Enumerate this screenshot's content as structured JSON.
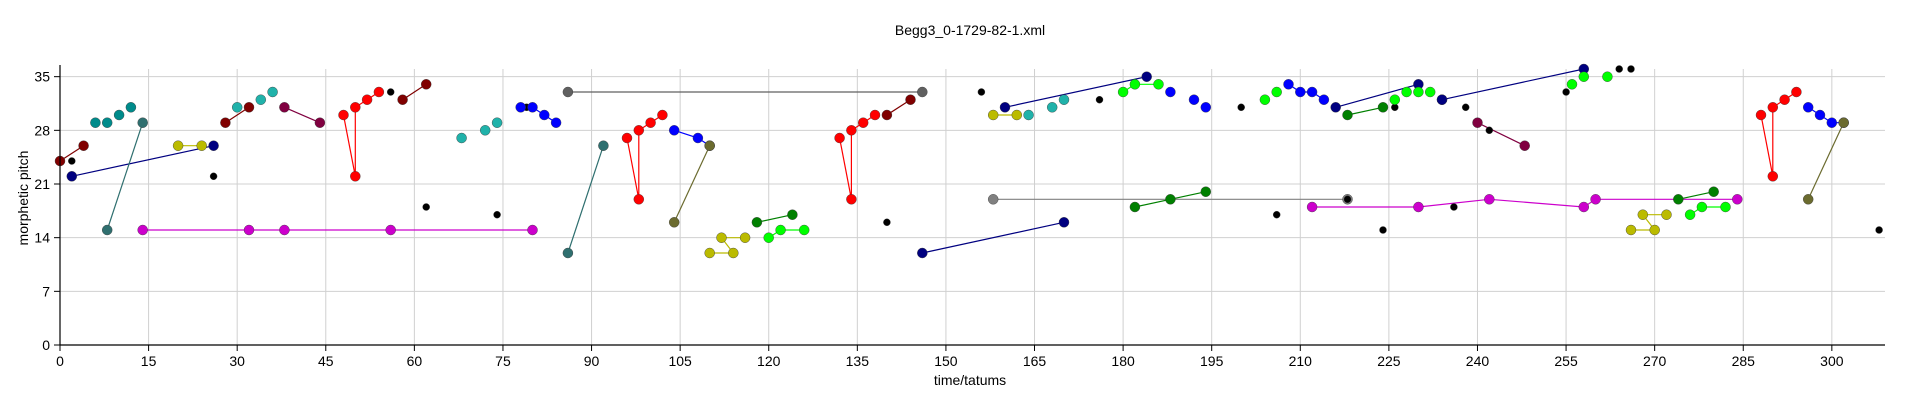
{
  "chart_data": {
    "type": "scatter",
    "title": "Begg3_0-1729-82-1.xml",
    "xlabel": "time/tatums",
    "ylabel": "morphetic pitch",
    "xlim": [
      0,
      309
    ],
    "ylim": [
      0,
      36
    ],
    "xticks": [
      0,
      15,
      30,
      45,
      60,
      75,
      90,
      105,
      120,
      135,
      150,
      165,
      180,
      195,
      210,
      225,
      240,
      255,
      270,
      285,
      300
    ],
    "yticks": [
      0,
      7,
      14,
      21,
      28,
      35
    ],
    "grid": true,
    "series": [
      {
        "color": "#800000",
        "points": [
          [
            0,
            24
          ],
          [
            4,
            26
          ]
        ],
        "lines": true
      },
      {
        "color": "#000000",
        "points": [
          [
            2,
            24
          ],
          [
            8,
            29
          ],
          [
            26,
            22
          ],
          [
            56,
            33
          ],
          [
            62,
            18
          ],
          [
            74,
            17
          ],
          [
            79,
            31
          ],
          [
            86,
            12
          ],
          [
            140,
            16
          ],
          [
            156,
            33
          ],
          [
            176,
            32
          ],
          [
            200,
            31
          ],
          [
            226,
            31
          ],
          [
            238,
            31
          ],
          [
            242,
            28
          ],
          [
            255,
            33
          ],
          [
            264,
            36
          ],
          [
            266,
            36
          ],
          [
            296,
            19
          ],
          [
            308,
            15
          ]
        ],
        "lines": false
      },
      {
        "color": "#000080",
        "points": [
          [
            2,
            22
          ],
          [
            26,
            26
          ]
        ],
        "lines": true
      },
      {
        "color": "#008b8b",
        "points": [
          [
            6,
            29
          ],
          [
            8,
            29
          ],
          [
            10,
            30
          ],
          [
            12,
            31
          ]
        ],
        "lines": false
      },
      {
        "color": "#2f6f6f",
        "points": [
          [
            8,
            15
          ],
          [
            14,
            29
          ]
        ],
        "lines": true
      },
      {
        "color": "#bbbb00",
        "points": [
          [
            20,
            26
          ],
          [
            24,
            26
          ]
        ],
        "lines": true
      },
      {
        "color": "#cc00cc",
        "points": [
          [
            14,
            15
          ],
          [
            32,
            15
          ],
          [
            38,
            15
          ],
          [
            56,
            15
          ],
          [
            80,
            15
          ]
        ],
        "lines": true
      },
      {
        "color": "#800000",
        "points": [
          [
            28,
            29
          ],
          [
            32,
            31
          ]
        ],
        "lines": true
      },
      {
        "color": "#20b2aa",
        "points": [
          [
            30,
            31
          ],
          [
            34,
            32
          ],
          [
            36,
            33
          ]
        ],
        "lines": false
      },
      {
        "color": "#800040",
        "points": [
          [
            38,
            31
          ],
          [
            44,
            29
          ]
        ],
        "lines": true
      },
      {
        "color": "#ff0000",
        "points": [
          [
            48,
            30
          ],
          [
            50,
            22
          ],
          [
            50,
            31
          ],
          [
            52,
            32
          ],
          [
            54,
            33
          ]
        ],
        "lines": true
      },
      {
        "color": "#800000",
        "points": [
          [
            58,
            32
          ],
          [
            62,
            34
          ]
        ],
        "lines": true
      },
      {
        "color": "#20b2aa",
        "points": [
          [
            68,
            27
          ],
          [
            72,
            28
          ],
          [
            74,
            29
          ]
        ],
        "lines": false
      },
      {
        "color": "#0000ff",
        "points": [
          [
            78,
            31
          ],
          [
            80,
            31
          ],
          [
            82,
            30
          ],
          [
            84,
            29
          ]
        ],
        "lines": true
      },
      {
        "color": "#606060",
        "points": [
          [
            86,
            33
          ],
          [
            146,
            33
          ]
        ],
        "lines": true
      },
      {
        "color": "#2f6f6f",
        "points": [
          [
            86,
            12
          ],
          [
            92,
            26
          ]
        ],
        "lines": true
      },
      {
        "color": "#ff0000",
        "points": [
          [
            96,
            27
          ],
          [
            98,
            19
          ],
          [
            98,
            28
          ],
          [
            100,
            29
          ],
          [
            102,
            30
          ]
        ],
        "lines": true
      },
      {
        "color": "#0000ff",
        "points": [
          [
            104,
            28
          ],
          [
            108,
            27
          ],
          [
            110,
            26
          ]
        ],
        "lines": true
      },
      {
        "color": "#6b6b2f",
        "points": [
          [
            104,
            16
          ],
          [
            110,
            26
          ]
        ],
        "lines": true
      },
      {
        "color": "#bbbb00",
        "points": [
          [
            110,
            12
          ],
          [
            114,
            12
          ],
          [
            112,
            14
          ],
          [
            116,
            14
          ]
        ],
        "lines": true
      },
      {
        "color": "#008000",
        "points": [
          [
            118,
            16
          ],
          [
            124,
            17
          ]
        ],
        "lines": true
      },
      {
        "color": "#00ff00",
        "points": [
          [
            120,
            14
          ],
          [
            122,
            15
          ],
          [
            126,
            15
          ]
        ],
        "lines": true
      },
      {
        "color": "#ff0000",
        "points": [
          [
            132,
            27
          ],
          [
            134,
            19
          ],
          [
            134,
            28
          ],
          [
            136,
            29
          ],
          [
            138,
            30
          ]
        ],
        "lines": true
      },
      {
        "color": "#800000",
        "points": [
          [
            140,
            30
          ],
          [
            144,
            32
          ]
        ],
        "lines": true
      },
      {
        "color": "#000080",
        "points": [
          [
            146,
            12
          ],
          [
            170,
            16
          ]
        ],
        "lines": true
      },
      {
        "color": "#bbbb00",
        "points": [
          [
            158,
            30
          ],
          [
            162,
            30
          ]
        ],
        "lines": true
      },
      {
        "color": "#20b2aa",
        "points": [
          [
            164,
            30
          ],
          [
            168,
            31
          ],
          [
            170,
            32
          ]
        ],
        "lines": false
      },
      {
        "color": "#000080",
        "points": [
          [
            160,
            31
          ],
          [
            184,
            35
          ]
        ],
        "lines": true
      },
      {
        "color": "#00ff00",
        "points": [
          [
            180,
            33
          ],
          [
            182,
            34
          ],
          [
            186,
            34
          ]
        ],
        "lines": true
      },
      {
        "color": "#0000ff",
        "points": [
          [
            188,
            33
          ],
          [
            192,
            32
          ],
          [
            194,
            31
          ]
        ],
        "lines": false
      },
      {
        "color": "#808080",
        "points": [
          [
            158,
            19
          ],
          [
            218,
            19
          ]
        ],
        "lines": true
      },
      {
        "color": "#008000",
        "points": [
          [
            182,
            18
          ],
          [
            188,
            19
          ],
          [
            194,
            20
          ]
        ],
        "lines": true
      },
      {
        "color": "#00ff00",
        "points": [
          [
            204,
            32
          ],
          [
            206,
            33
          ]
        ],
        "lines": false
      },
      {
        "color": "#0000ff",
        "points": [
          [
            208,
            34
          ],
          [
            210,
            33
          ],
          [
            212,
            33
          ],
          [
            214,
            32
          ]
        ],
        "lines": true
      },
      {
        "color": "#000000",
        "points": [
          [
            206,
            17
          ],
          [
            218,
            19
          ],
          [
            224,
            15
          ],
          [
            236,
            18
          ]
        ],
        "lines": false
      },
      {
        "color": "#000080",
        "points": [
          [
            216,
            31
          ],
          [
            230,
            34
          ]
        ],
        "lines": true
      },
      {
        "color": "#00ff00",
        "points": [
          [
            226,
            32
          ],
          [
            228,
            33
          ],
          [
            230,
            33
          ],
          [
            232,
            33
          ]
        ],
        "lines": false
      },
      {
        "color": "#0000ff",
        "points": [
          [
            234,
            32
          ]
        ],
        "lines": false
      },
      {
        "color": "#008000",
        "points": [
          [
            218,
            30
          ],
          [
            224,
            31
          ]
        ],
        "lines": true
      },
      {
        "color": "#cc00cc",
        "points": [
          [
            212,
            18
          ],
          [
            230,
            18
          ],
          [
            242,
            19
          ],
          [
            258,
            18
          ],
          [
            260,
            19
          ],
          [
            284,
            19
          ]
        ],
        "lines": true
      },
      {
        "color": "#000080",
        "points": [
          [
            234,
            32
          ],
          [
            258,
            36
          ]
        ],
        "lines": true
      },
      {
        "color": "#800040",
        "points": [
          [
            240,
            29
          ],
          [
            248,
            26
          ]
        ],
        "lines": true
      },
      {
        "color": "#00ff00",
        "points": [
          [
            256,
            34
          ],
          [
            258,
            35
          ],
          [
            262,
            35
          ]
        ],
        "lines": false
      },
      {
        "color": "#bbbb00",
        "points": [
          [
            266,
            15
          ],
          [
            270,
            15
          ],
          [
            268,
            17
          ],
          [
            272,
            17
          ]
        ],
        "lines": true
      },
      {
        "color": "#008000",
        "points": [
          [
            274,
            19
          ],
          [
            280,
            20
          ]
        ],
        "lines": true
      },
      {
        "color": "#00ff00",
        "points": [
          [
            276,
            17
          ],
          [
            278,
            18
          ],
          [
            282,
            18
          ]
        ],
        "lines": true
      },
      {
        "color": "#ff0000",
        "points": [
          [
            288,
            30
          ],
          [
            290,
            22
          ],
          [
            290,
            31
          ],
          [
            292,
            32
          ],
          [
            294,
            33
          ]
        ],
        "lines": true
      },
      {
        "color": "#0000ff",
        "points": [
          [
            296,
            31
          ],
          [
            298,
            30
          ],
          [
            300,
            29
          ],
          [
            302,
            29
          ]
        ],
        "lines": true
      },
      {
        "color": "#6b6b2f",
        "points": [
          [
            296,
            19
          ],
          [
            302,
            29
          ]
        ],
        "lines": true
      }
    ]
  }
}
